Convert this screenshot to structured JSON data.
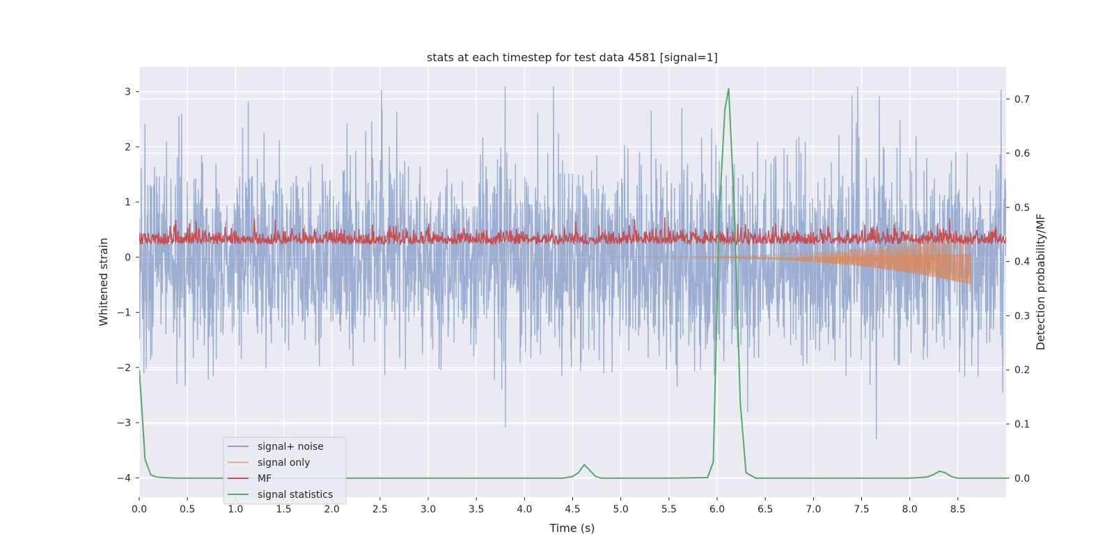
{
  "chart_data": {
    "type": "line",
    "title": "stats at each timestep for test data 4581 [signal=1]",
    "xlabel": "Time (s)",
    "ylabel_left": "Whitened strain",
    "ylabel_right": "Detection probability/MF",
    "xlim": [
      0,
      9.0
    ],
    "ylim_left": [
      -4.35,
      3.45
    ],
    "ylim_right": [
      -0.035,
      0.7595
    ],
    "x_ticks": [
      0.0,
      0.5,
      1.0,
      1.5,
      2.0,
      2.5,
      3.0,
      3.5,
      4.0,
      4.5,
      5.0,
      5.5,
      6.0,
      6.5,
      7.0,
      7.5,
      8.0,
      8.5
    ],
    "x_tick_labels": [
      "0.0",
      "0.5",
      "1.0",
      "1.5",
      "2.0",
      "2.5",
      "3.0",
      "3.5",
      "4.0",
      "4.5",
      "5.0",
      "5.5",
      "6.0",
      "6.5",
      "7.0",
      "7.5",
      "8.0",
      "8.5"
    ],
    "y_left_ticks": [
      -4,
      -3,
      -2,
      -1,
      0,
      1,
      2,
      3
    ],
    "y_left_tick_labels": [
      "−4",
      "−3",
      "−2",
      "−1",
      "0",
      "1",
      "2",
      "3"
    ],
    "y_right_ticks": [
      0.0,
      0.1,
      0.2,
      0.3,
      0.4,
      0.5,
      0.6,
      0.7
    ],
    "y_right_tick_labels": [
      "0.0",
      "0.1",
      "0.2",
      "0.3",
      "0.4",
      "0.5",
      "0.6",
      "0.7"
    ],
    "grid": true,
    "legend_position": "lower-left",
    "series": [
      {
        "name": "signal+ noise",
        "axis": "left",
        "color": "#4c72b0",
        "kind": "noise",
        "std": 1.0,
        "approx_range": [
          -3.3,
          3.1
        ]
      },
      {
        "name": "signal only",
        "axis": "left",
        "color": "#dd8452",
        "kind": "chirp",
        "start_time": 4.9,
        "end_time": 8.64,
        "peak_amplitude": 0.5
      },
      {
        "name": "MF",
        "axis": "right",
        "color": "#c44e52",
        "kind": "noise",
        "approx_range": [
          0.41,
          0.51
        ]
      },
      {
        "name": "signal statistics",
        "axis": "right",
        "color": "#55a868",
        "kind": "line",
        "x": [
          0.0,
          0.03,
          0.06,
          0.12,
          0.18,
          0.25,
          0.4,
          1.0,
          2.0,
          3.0,
          4.0,
          4.4,
          4.5,
          4.56,
          4.62,
          4.68,
          4.74,
          4.8,
          5.0,
          5.5,
          5.9,
          5.96,
          6.02,
          6.08,
          6.12,
          6.18,
          6.24,
          6.3,
          6.4,
          7.0,
          8.0,
          8.18,
          8.25,
          8.31,
          8.37,
          8.43,
          8.5,
          9.0
        ],
        "y": [
          0.2,
          0.12,
          0.035,
          0.006,
          0.002,
          0.001,
          0.0,
          0.0,
          0.0,
          0.0,
          0.0,
          0.0,
          0.003,
          0.01,
          0.025,
          0.014,
          0.003,
          0.0,
          0.0,
          0.0,
          0.001,
          0.03,
          0.48,
          0.68,
          0.72,
          0.49,
          0.14,
          0.01,
          0.0,
          0.0,
          0.0,
          0.002,
          0.007,
          0.013,
          0.01,
          0.003,
          0.0,
          0.0
        ]
      }
    ]
  },
  "legend": {
    "items": [
      {
        "label": "signal+ noise",
        "color": "#4c72b0"
      },
      {
        "label": "signal only",
        "color": "#dd8452"
      },
      {
        "label": "MF",
        "color": "#c44e52"
      },
      {
        "label": "signal statistics",
        "color": "#55a868"
      }
    ]
  }
}
